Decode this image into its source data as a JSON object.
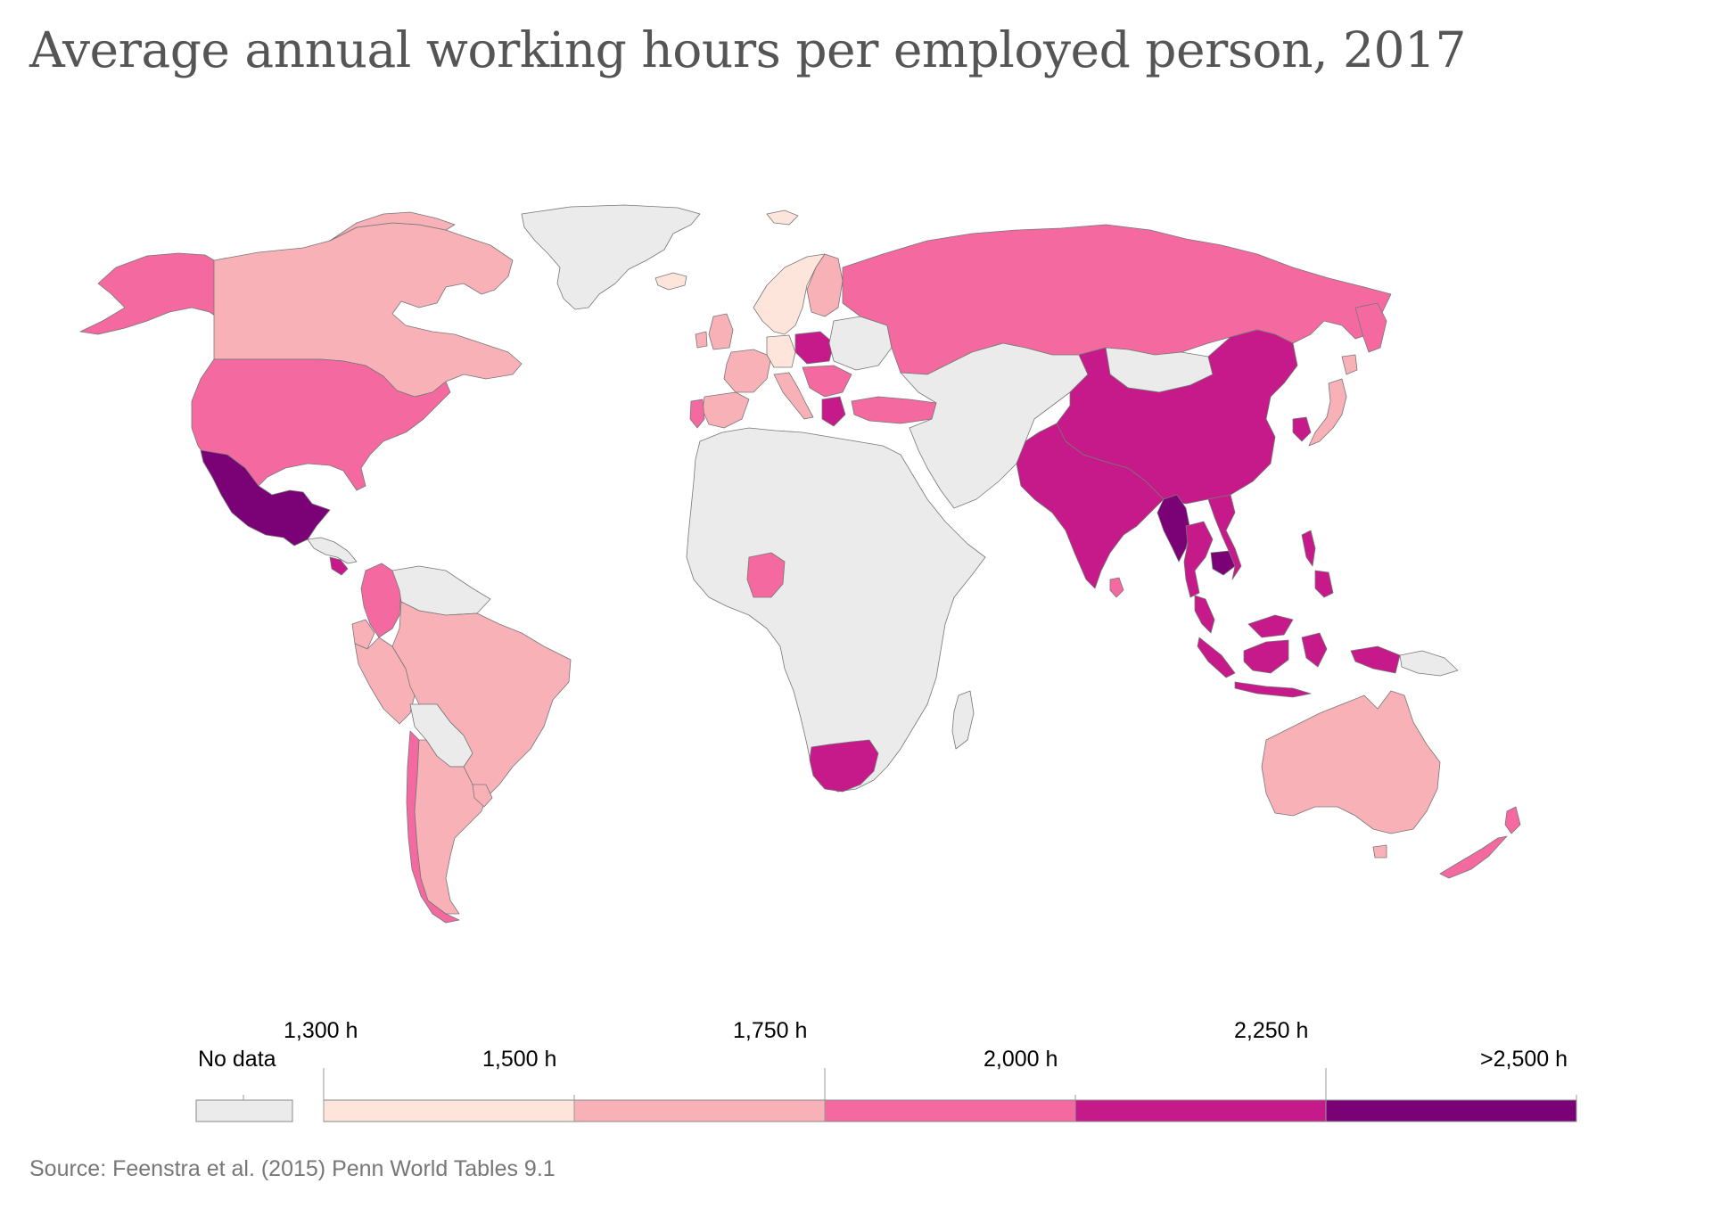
{
  "title": "Average annual working hours per employed person, 2017",
  "source": "Source: Feenstra et al. (2015) Penn World Tables 9.1",
  "legend": {
    "no_data_label": "No data",
    "no_data_color": "#ebebeb",
    "bins": [
      {
        "from": "1,300 h",
        "to": "1,500 h",
        "color": "#fde5db"
      },
      {
        "from": "1,500 h",
        "to": "1,750 h",
        "color": "#f8b1b6"
      },
      {
        "from": "1,750 h",
        "to": "2,000 h",
        "color": "#f46aa0"
      },
      {
        "from": "2,000 h",
        "to": "2,250 h",
        "color": "#c61a8b"
      },
      {
        "from": "2,250 h",
        "to": ">2,500 h",
        "color": "#7a0276"
      }
    ],
    "tick_labels": [
      "1,300 h",
      "1,500 h",
      "1,750 h",
      "2,000 h",
      "2,250 h",
      ">2,500 h"
    ]
  },
  "regions": [
    {
      "name": "Greenland",
      "color": "#ebebeb"
    },
    {
      "name": "Alaska / USA",
      "color": "#f46aa0"
    },
    {
      "name": "Canada",
      "color": "#f8b1b6"
    },
    {
      "name": "Mexico",
      "color": "#7a0276"
    },
    {
      "name": "Central America",
      "color": "#ebebeb"
    },
    {
      "name": "Costa Rica",
      "color": "#c61a8b"
    },
    {
      "name": "Colombia",
      "color": "#f46aa0"
    },
    {
      "name": "Venezuela / Guianas",
      "color": "#ebebeb"
    },
    {
      "name": "Brazil",
      "color": "#f8b1b6"
    },
    {
      "name": "Ecuador",
      "color": "#f8b1b6"
    },
    {
      "name": "Peru",
      "color": "#f46aa0"
    },
    {
      "name": "Bolivia / Paraguay",
      "color": "#ebebeb"
    },
    {
      "name": "Chile",
      "color": "#f46aa0"
    },
    {
      "name": "Argentina",
      "color": "#f8b1b6"
    },
    {
      "name": "Uruguay",
      "color": "#f8b1b6"
    },
    {
      "name": "Iceland",
      "color": "#fde5db"
    },
    {
      "name": "Svalbard",
      "color": "#fde5db"
    },
    {
      "name": "Norway / Sweden",
      "color": "#fde5db"
    },
    {
      "name": "Finland",
      "color": "#f8b1b6"
    },
    {
      "name": "UK / Ireland",
      "color": "#f8b1b6"
    },
    {
      "name": "France",
      "color": "#f8b1b6"
    },
    {
      "name": "Germany",
      "color": "#fde5db"
    },
    {
      "name": "Poland",
      "color": "#c61a8b"
    },
    {
      "name": "Spain",
      "color": "#f8b1b6"
    },
    {
      "name": "Portugal",
      "color": "#f46aa0"
    },
    {
      "name": "Italy",
      "color": "#f8b1b6"
    },
    {
      "name": "Balkans",
      "color": "#f46aa0"
    },
    {
      "name": "Greece",
      "color": "#c61a8b"
    },
    {
      "name": "Belarus / Ukraine",
      "color": "#ebebeb"
    },
    {
      "name": "Russia",
      "color": "#f46aa0"
    },
    {
      "name": "Turkey",
      "color": "#f46aa0"
    },
    {
      "name": "Middle East / Central Asia",
      "color": "#ebebeb"
    },
    {
      "name": "Mongolia",
      "color": "#ebebeb"
    },
    {
      "name": "China",
      "color": "#c61a8b"
    },
    {
      "name": "India",
      "color": "#c61a8b"
    },
    {
      "name": "Sri Lanka",
      "color": "#f46aa0"
    },
    {
      "name": "Myanmar",
      "color": "#7a0276"
    },
    {
      "name": "Thailand",
      "color": "#c61a8b"
    },
    {
      "name": "Cambodia",
      "color": "#7a0276"
    },
    {
      "name": "Vietnam",
      "color": "#c61a8b"
    },
    {
      "name": "Malaysia",
      "color": "#c61a8b"
    },
    {
      "name": "Indonesia",
      "color": "#c61a8b"
    },
    {
      "name": "Philippines",
      "color": "#c61a8b"
    },
    {
      "name": "South Korea",
      "color": "#c61a8b"
    },
    {
      "name": "Japan",
      "color": "#f8b1b6"
    },
    {
      "name": "Papua New Guinea",
      "color": "#ebebeb"
    },
    {
      "name": "Australia",
      "color": "#f8b1b6"
    },
    {
      "name": "New Zealand",
      "color": "#f46aa0"
    },
    {
      "name": "Africa",
      "color": "#ebebeb"
    },
    {
      "name": "Nigeria",
      "color": "#f46aa0"
    },
    {
      "name": "South Africa",
      "color": "#c61a8b"
    },
    {
      "name": "Madagascar",
      "color": "#ebebeb"
    }
  ]
}
